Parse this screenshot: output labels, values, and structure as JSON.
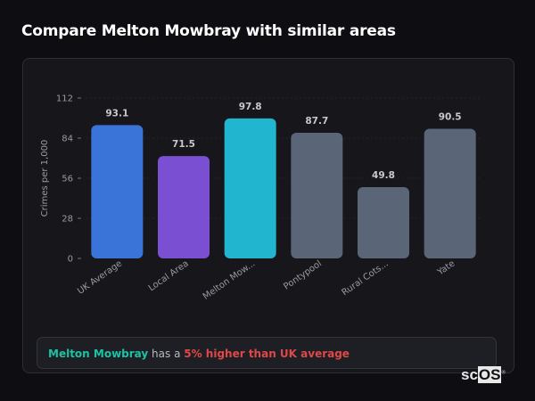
{
  "title": "Compare Melton Mowbray with similar areas",
  "chart_data": {
    "type": "bar",
    "categories": [
      "UK Average",
      "Local Area",
      "Melton Mow...",
      "Pontypool",
      "Rural Cots...",
      "Yate"
    ],
    "values": [
      93.1,
      71.5,
      97.8,
      87.7,
      49.8,
      90.5
    ],
    "data_labels": [
      "93.1",
      "71.5",
      "97.8",
      "87.7",
      "49.8",
      "90.5"
    ],
    "colors": [
      "#3b74d8",
      "#7b4fd2",
      "#22b5cf",
      "#5a6577",
      "#5a6577",
      "#5a6577"
    ],
    "ylabel": "Crimes per 1,000",
    "xlabel": "",
    "ylim": [
      0,
      112
    ],
    "yticks": [
      0,
      28,
      56,
      84,
      112
    ],
    "grid": true
  },
  "summary": {
    "area": "Melton Mowbray",
    "middle": " has a ",
    "highlight": "5% higher than UK average"
  },
  "logo": {
    "prefix": "sc",
    "suffix": "OS",
    "mark": "®"
  }
}
